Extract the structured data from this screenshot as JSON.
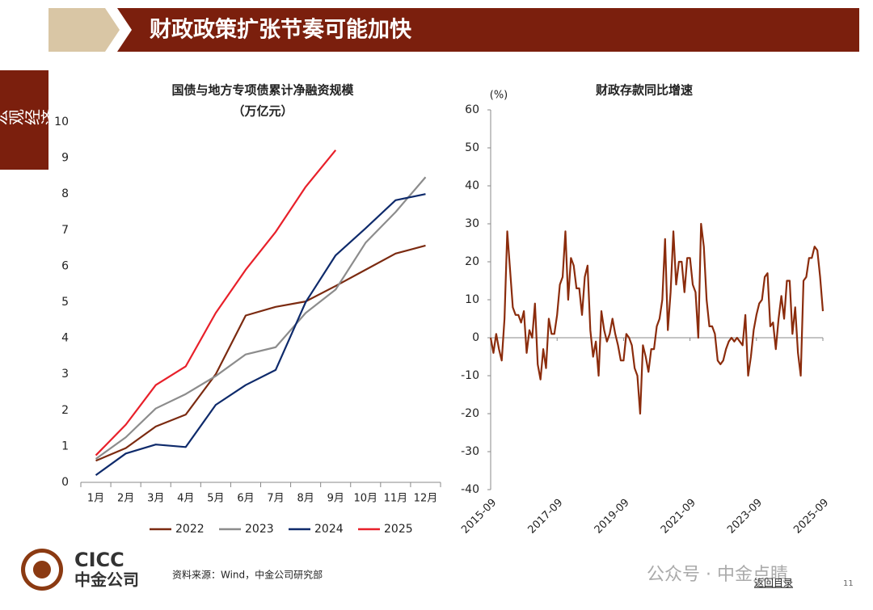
{
  "header": {
    "title": "财政政策扩张节奏可能加快"
  },
  "sidebar": "宏观经济",
  "logo": {
    "en": "CICC",
    "cn": "中金公司"
  },
  "footer": {
    "source": "资料来源：Wind，中金公司研究部",
    "watermark": "公众号 · 中金点睛",
    "back": "返回目录",
    "page": "11"
  },
  "chart_data": [
    {
      "type": "line",
      "title": "国债与地方专项债累计净融资规模",
      "subtitle": "（万亿元）",
      "categories": [
        "1月",
        "2月",
        "3月",
        "4月",
        "5月",
        "6月",
        "7月",
        "8月",
        "9月",
        "10月",
        "11月",
        "12月"
      ],
      "series": [
        {
          "name": "2022",
          "color": "#7b2a10",
          "values": [
            0.6,
            0.95,
            1.55,
            1.88,
            3.0,
            4.63,
            4.87,
            5.02,
            5.45,
            5.9,
            6.35,
            6.57
          ]
        },
        {
          "name": "2023",
          "color": "#8c8c8c",
          "values": [
            0.65,
            1.25,
            2.05,
            2.45,
            2.95,
            3.55,
            3.75,
            4.7,
            5.35,
            6.65,
            7.5,
            8.47
          ]
        },
        {
          "name": "2024",
          "color": "#0e2a6b",
          "values": [
            0.2,
            0.8,
            1.05,
            0.98,
            2.15,
            2.7,
            3.12,
            5.0,
            6.3,
            7.05,
            7.83,
            8.0
          ]
        },
        {
          "name": "2025",
          "color": "#e8202a",
          "values": [
            0.75,
            1.6,
            2.7,
            3.22,
            4.7,
            5.9,
            6.95,
            8.2,
            9.22,
            null,
            null,
            null
          ]
        }
      ],
      "ylim": [
        0,
        10
      ],
      "yticks": [
        0,
        1,
        2,
        3,
        4,
        5,
        6,
        7,
        8,
        9,
        10
      ],
      "grid": false
    },
    {
      "type": "line",
      "title": "财政存款同比增速",
      "unit": "(%)",
      "color": "#8b2c0c",
      "categories": [
        "2015-09",
        null,
        null,
        null,
        null,
        null,
        null,
        null,
        null,
        null,
        null,
        null,
        null,
        null,
        null,
        null,
        null,
        null,
        null,
        null,
        null,
        null,
        null,
        null,
        "2017-09",
        null,
        null,
        null,
        null,
        null,
        null,
        null,
        null,
        null,
        null,
        null,
        null,
        null,
        null,
        null,
        null,
        null,
        null,
        null,
        null,
        null,
        null,
        null,
        "2019-09",
        null,
        null,
        null,
        null,
        null,
        null,
        null,
        null,
        null,
        null,
        null,
        null,
        null,
        null,
        null,
        null,
        null,
        null,
        null,
        null,
        null,
        null,
        null,
        "2021-09",
        null,
        null,
        null,
        null,
        null,
        null,
        null,
        null,
        null,
        null,
        null,
        null,
        null,
        null,
        null,
        null,
        null,
        null,
        null,
        null,
        null,
        null,
        null,
        "2023-09",
        null,
        null,
        null,
        null,
        null,
        null,
        null,
        null,
        null,
        null,
        null,
        null,
        null,
        null,
        null,
        null,
        null,
        null,
        null,
        null,
        null,
        null,
        null,
        "2025-09"
      ],
      "values": [
        0,
        -4,
        1,
        -3,
        -6,
        5,
        28,
        18,
        8,
        6,
        6,
        4,
        7,
        -4,
        2,
        0,
        9,
        -7,
        -11,
        -3,
        -8,
        5,
        1,
        1,
        6,
        14,
        16,
        28,
        10,
        21,
        19,
        13,
        13,
        6,
        16,
        19,
        2,
        -5,
        -1,
        -10,
        7,
        2,
        -1,
        1,
        5,
        1,
        -2,
        -6,
        -6,
        1,
        0,
        -2,
        -8,
        -10,
        -20,
        -2,
        -5,
        -9,
        -3,
        -3,
        3,
        5,
        10,
        26,
        2,
        12,
        28,
        14,
        20,
        20,
        12,
        21,
        21,
        14,
        12,
        0,
        30,
        24,
        10,
        3,
        3,
        1,
        -6,
        -7,
        -6,
        -3,
        -1,
        0,
        -1,
        0,
        -1,
        -2,
        6,
        -10,
        -5,
        2,
        6,
        9,
        10,
        16,
        17,
        3,
        4,
        -3,
        5,
        11,
        5,
        15,
        15,
        1,
        8,
        -4,
        -10,
        15,
        16,
        21,
        21,
        24,
        23,
        16,
        7
      ],
      "ylim": [
        -40,
        60
      ],
      "yticks": [
        -40,
        -30,
        -20,
        -10,
        0,
        10,
        20,
        30,
        40,
        50,
        60
      ],
      "grid": false
    }
  ]
}
